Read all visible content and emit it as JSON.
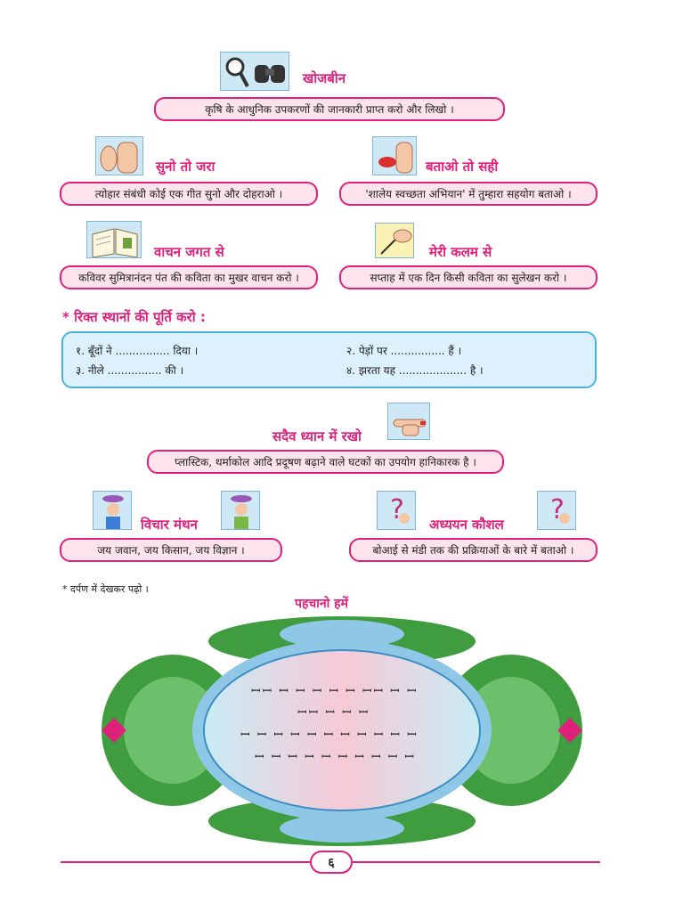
{
  "sections": {
    "khojbeen": {
      "title": "खोजबीन",
      "text": "कृषि के आधुनिक उपकरणों की जानकारी प्राप्त करो और लिखो ।",
      "icon": "magnifier-binoculars-icon"
    },
    "suno": {
      "title": "सुनो तो जरा",
      "text": "त्योहार संबंधी कोई एक गीत सुनो और दोहराओ ।",
      "icon": "ear-hand-icon"
    },
    "batao": {
      "title": "बताओ तो सही",
      "text": "'शालेय स्वच्छता अभियान' में तुम्हारा सहयोग बताओ ।",
      "icon": "speaking-mouth-icon"
    },
    "vachan": {
      "title": "वाचन जगत से",
      "text": "कविवर सुमित्रानंदन पंत की कविता का मुखर वाचन करो ।",
      "icon": "open-book-icon"
    },
    "kalam": {
      "title": "मेरी कलम से",
      "text": "सप्ताह में एक दिन किसी कविता का सुलेखन करो ।",
      "icon": "writing-hand-icon"
    }
  },
  "fill_blanks": {
    "title": "* रिक्त स्थानों की पूर्ति करो :",
    "items": [
      "१.   बूँदों ने ................ दिया ।",
      "२.   पेड़ों पर ................ हैं ।",
      "३.   नीले ................ की ।",
      "४.   झरता यह  .................... है ।"
    ]
  },
  "dhyan": {
    "title": "सदैव ध्यान में रखो",
    "text": "प्लास्टिक, थर्माकोल आदि प्रदूषण बढ़ाने वाले घटकों का उपयोग हानिकारक है ।",
    "icon": "pointing-hand-icon"
  },
  "vichar": {
    "title": "विचार मंथन",
    "text": "जय जवान, जय किसान, जय विज्ञान ।",
    "icons": [
      "thinking-girl-icon",
      "thinking-boy-icon"
    ]
  },
  "adhyayan": {
    "title": "अध्ययन कौशल",
    "text": "बोआई से मंडी तक की प्रक्रियाओं के बारे में बताओ ।",
    "icons": [
      "question-boy-icon",
      "question-girl-icon"
    ]
  },
  "mirror_note": "* दर्पण में देखकर पढ़ो ।",
  "pehchano": {
    "title": "पहचानो हमें",
    "lines": [
      "ꟷꟷ ꟷ ꟷ ꟷ ꟷ ꟷ ꟷꟷ ꟷ ꟷ",
      "ꟷꟷ ꟷ ꟷ ꟷ",
      "ꟷ ꟷ ꟷ ꟷ ꟷ ꟷ ꟷ ꟷ ꟷ ꟷ ꟷ",
      "ꟷ ꟷ ꟷ ꟷ ꟷ ꟷ ꟷ ꟷ ꟷ ꟷ"
    ]
  },
  "page_number": "६",
  "colors": {
    "accent": "#e0207a",
    "pill_bg": "#fde3ec",
    "box_blue": "#49b3e0",
    "box_fill": "#dcf1fb"
  }
}
